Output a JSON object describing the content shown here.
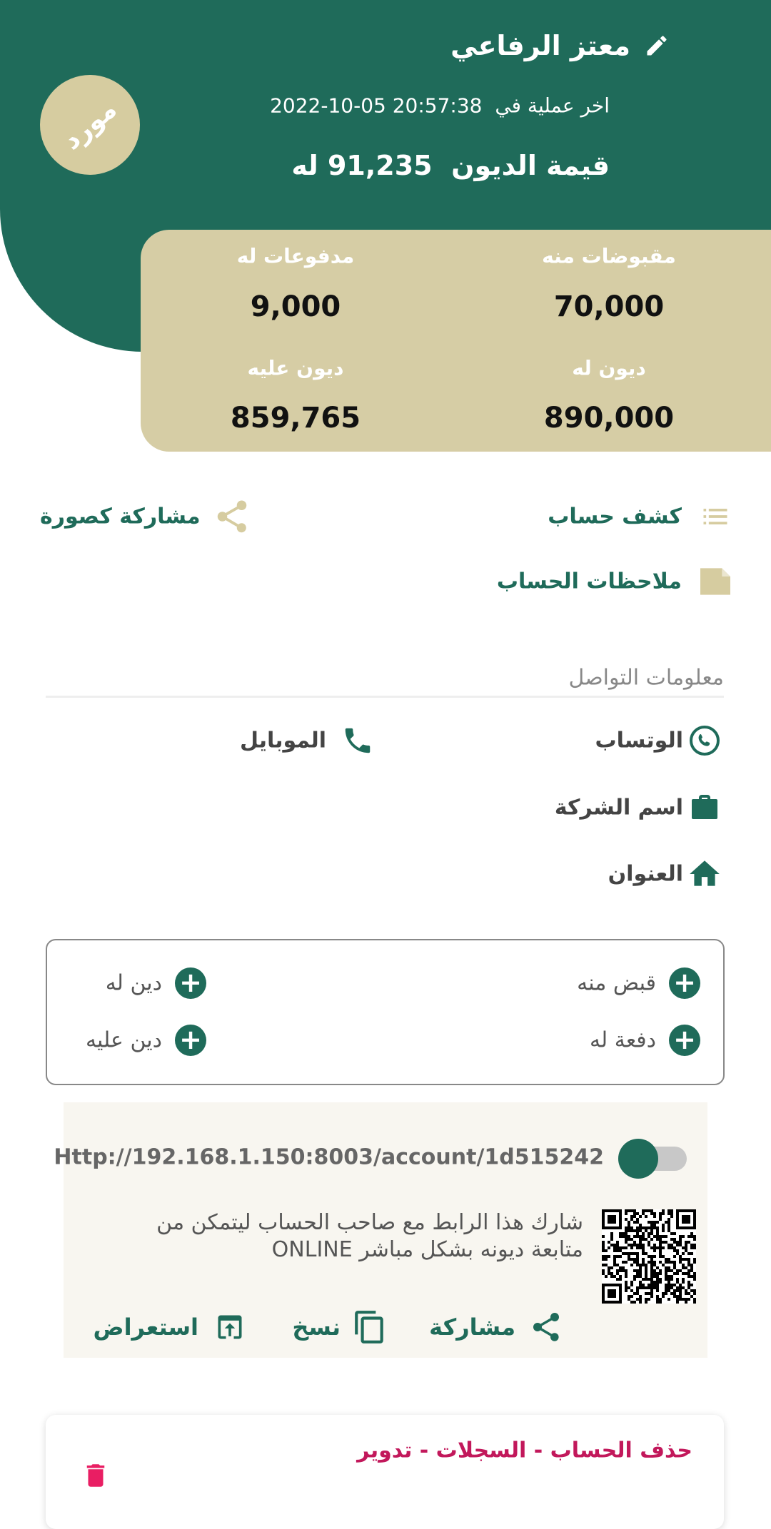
{
  "header": {
    "name": "معتز الرفاعي",
    "badge": "مورد",
    "last_op_label": "اخر عملية في",
    "last_op_time": "2022-10-05 20:57:38",
    "debt_label": "قيمة الديون",
    "debt_value": "91,235 له"
  },
  "stats": [
    {
      "label": "مقبوضات منه",
      "value": "70,000"
    },
    {
      "label": "مدفوعات له",
      "value": "9,000"
    },
    {
      "label": "ديون له",
      "value": "890,000"
    },
    {
      "label": "ديون عليه",
      "value": "859,765"
    }
  ],
  "actions": {
    "statement": "كشف حساب",
    "share_image": "مشاركة كصورة",
    "notes": "ملاحظات الحساب"
  },
  "contact": {
    "title": "معلومات التواصل",
    "whatsapp": "الوتساب",
    "mobile": "الموبايل",
    "company": "اسم الشركة",
    "address": "العنوان"
  },
  "buttons": {
    "receive": "قبض منه",
    "debt_to": "دين له",
    "pay": "دفعة له",
    "debt_on": "دين عليه"
  },
  "link": {
    "url": "Http://192.168.1.150:8003/account/1d515242",
    "description": "شارك هذا الرابط مع صاحب الحساب ليتمكن من متابعة ديونه بشكل مباشر ONLINE",
    "share": "مشاركة",
    "copy": "نسخ",
    "view": "استعراض"
  },
  "delete": {
    "title": "حذف الحساب - السجلات - تدوير"
  }
}
